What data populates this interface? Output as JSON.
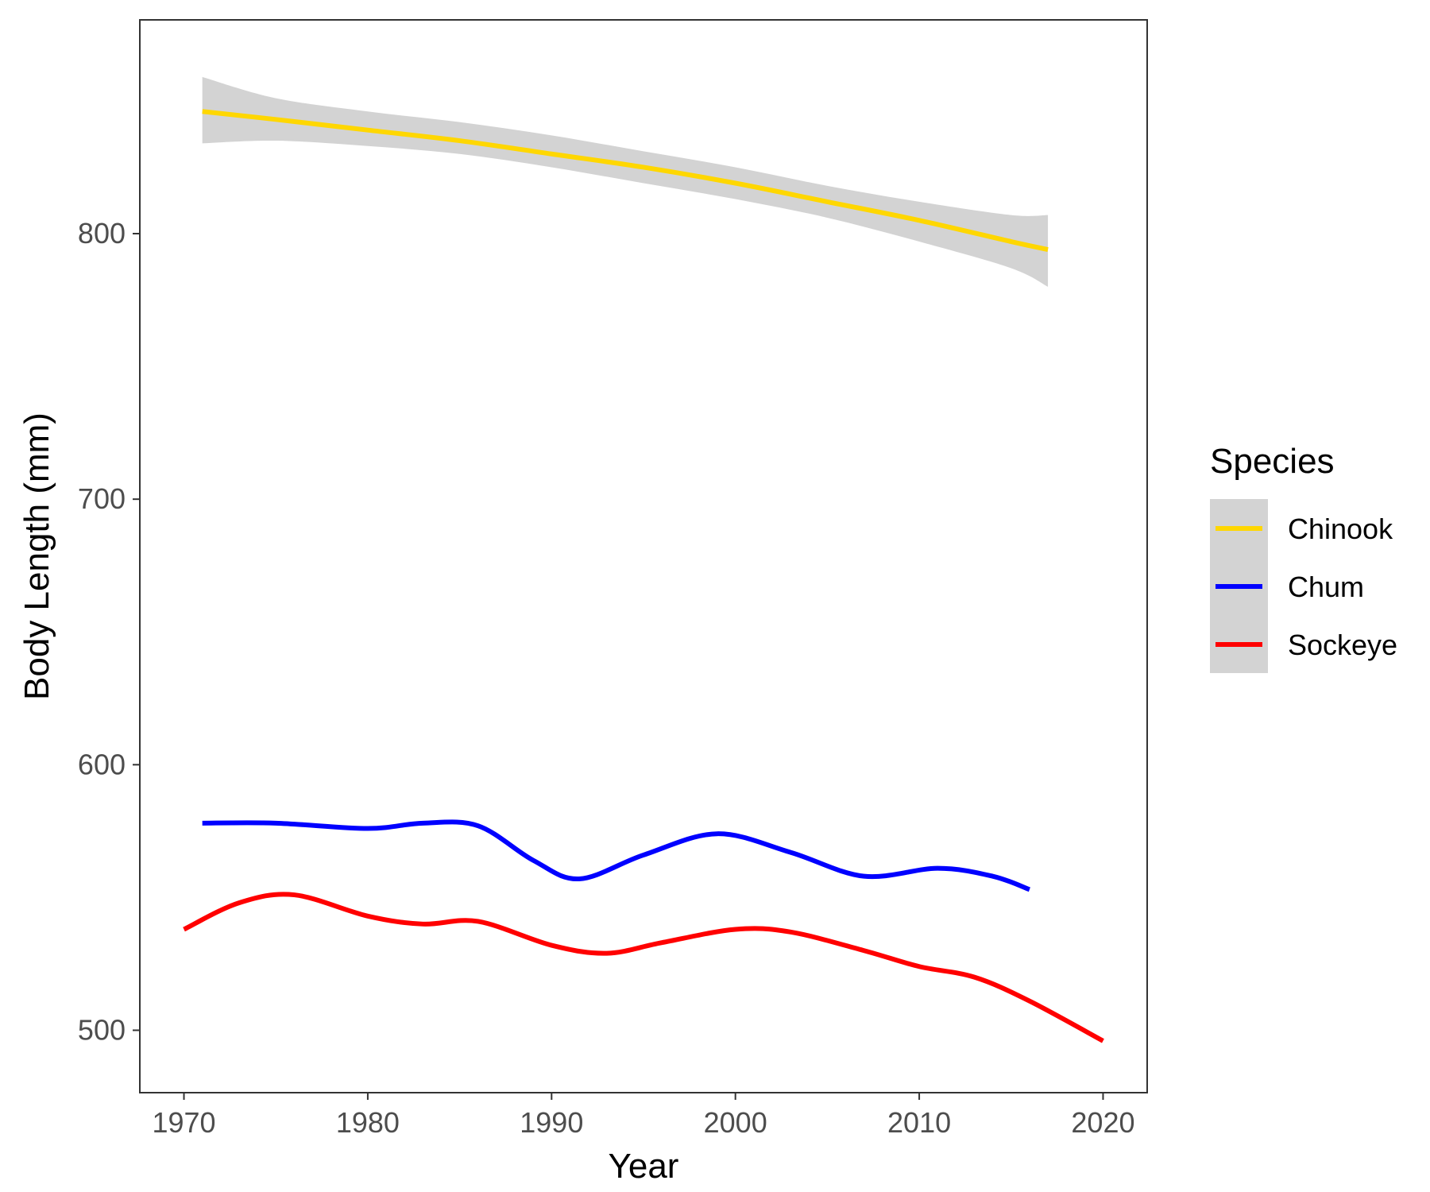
{
  "chart_data": {
    "type": "line",
    "xlabel": "Year",
    "ylabel": "Body Length (mm)",
    "xlim": [
      1967.6,
      2022.4
    ],
    "ylim": [
      476.5,
      880.5
    ],
    "x_ticks": [
      1970,
      1980,
      1990,
      2000,
      2010,
      2020
    ],
    "y_ticks": [
      500,
      600,
      700,
      800
    ],
    "grid": false,
    "legend": {
      "title": "Species",
      "placement": "right",
      "entries": [
        "Chinook",
        "Chum",
        "Sockeye"
      ]
    },
    "series": [
      {
        "name": "Chinook",
        "color": "#FFD700",
        "confidence_band_color": "#D3D3D3",
        "x": [
          1971,
          1975,
          1980,
          1985,
          1990,
          1995,
          2000,
          2005,
          2010,
          2015,
          2017
        ],
        "y": [
          846,
          843,
          839,
          835,
          830,
          825,
          819,
          812,
          805,
          797,
          794
        ],
        "ci_lower": [
          834,
          835,
          833,
          830,
          825,
          819,
          813,
          806,
          797,
          787,
          780
        ],
        "ci_upper": [
          859,
          851,
          846,
          842,
          837,
          831,
          825,
          818,
          812,
          807,
          807
        ]
      },
      {
        "name": "Chum",
        "color": "#0000FF",
        "x": [
          1971,
          1975,
          1980,
          1983,
          1986,
          1989,
          1991.5,
          1995,
          1999,
          2003,
          2007,
          2011,
          2014,
          2016
        ],
        "y": [
          578,
          578,
          576,
          578,
          577,
          564,
          557,
          566,
          574,
          567,
          558,
          561,
          558,
          553
        ]
      },
      {
        "name": "Sockeye",
        "color": "#FF0000",
        "x": [
          1970,
          1973,
          1976,
          1980,
          1983,
          1986,
          1990,
          1993,
          1996,
          2000,
          2003,
          2007,
          2010,
          2013,
          2016,
          2020
        ],
        "y": [
          538,
          548,
          551,
          543,
          540,
          541,
          532,
          529,
          533,
          538,
          537,
          530,
          524,
          520,
          511,
          496
        ]
      }
    ]
  }
}
